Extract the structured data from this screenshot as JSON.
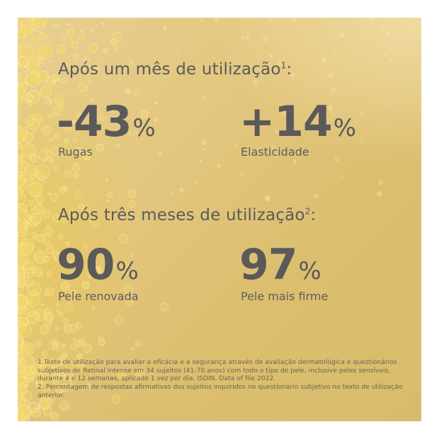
{
  "section1": {
    "heading": "Após um mês de utilização",
    "marker": "1",
    "heading_suffix": ":",
    "stats": [
      {
        "value": "-43",
        "unit": "%",
        "label": "Rugas"
      },
      {
        "value": "+14",
        "unit": "%",
        "label": "Elasticidade"
      }
    ]
  },
  "section2": {
    "heading": "Após três meses de utilização",
    "marker": "2",
    "heading_suffix": ":",
    "stats": [
      {
        "value": "90",
        "unit": "%",
        "label": "Pele renovada"
      },
      {
        "value": "97",
        "unit": "%",
        "label": "Pele mais firme"
      }
    ]
  },
  "footnotes": [
    "1.Teste de utilização para avaliar a eficácia e a segurança através de avaliação dermatológica e questionários subjetivos de Retinal Intense em 34 sujeitos (41-70 anos) com todo o tipo de pele, inclusive peles sensíveis, durante 4 e 12 semanas, aplicado 1 vez por dia. ISDIN. Data of file 2022.",
    "2. Percentagem de respostas afirmativas dos sujeitos inquiridos no questionário subjetivo no texto de utilização anterior."
  ],
  "colors": {
    "text": "#5a5a5a",
    "background": "#e3c77f",
    "bubble": "#f3d66a"
  }
}
